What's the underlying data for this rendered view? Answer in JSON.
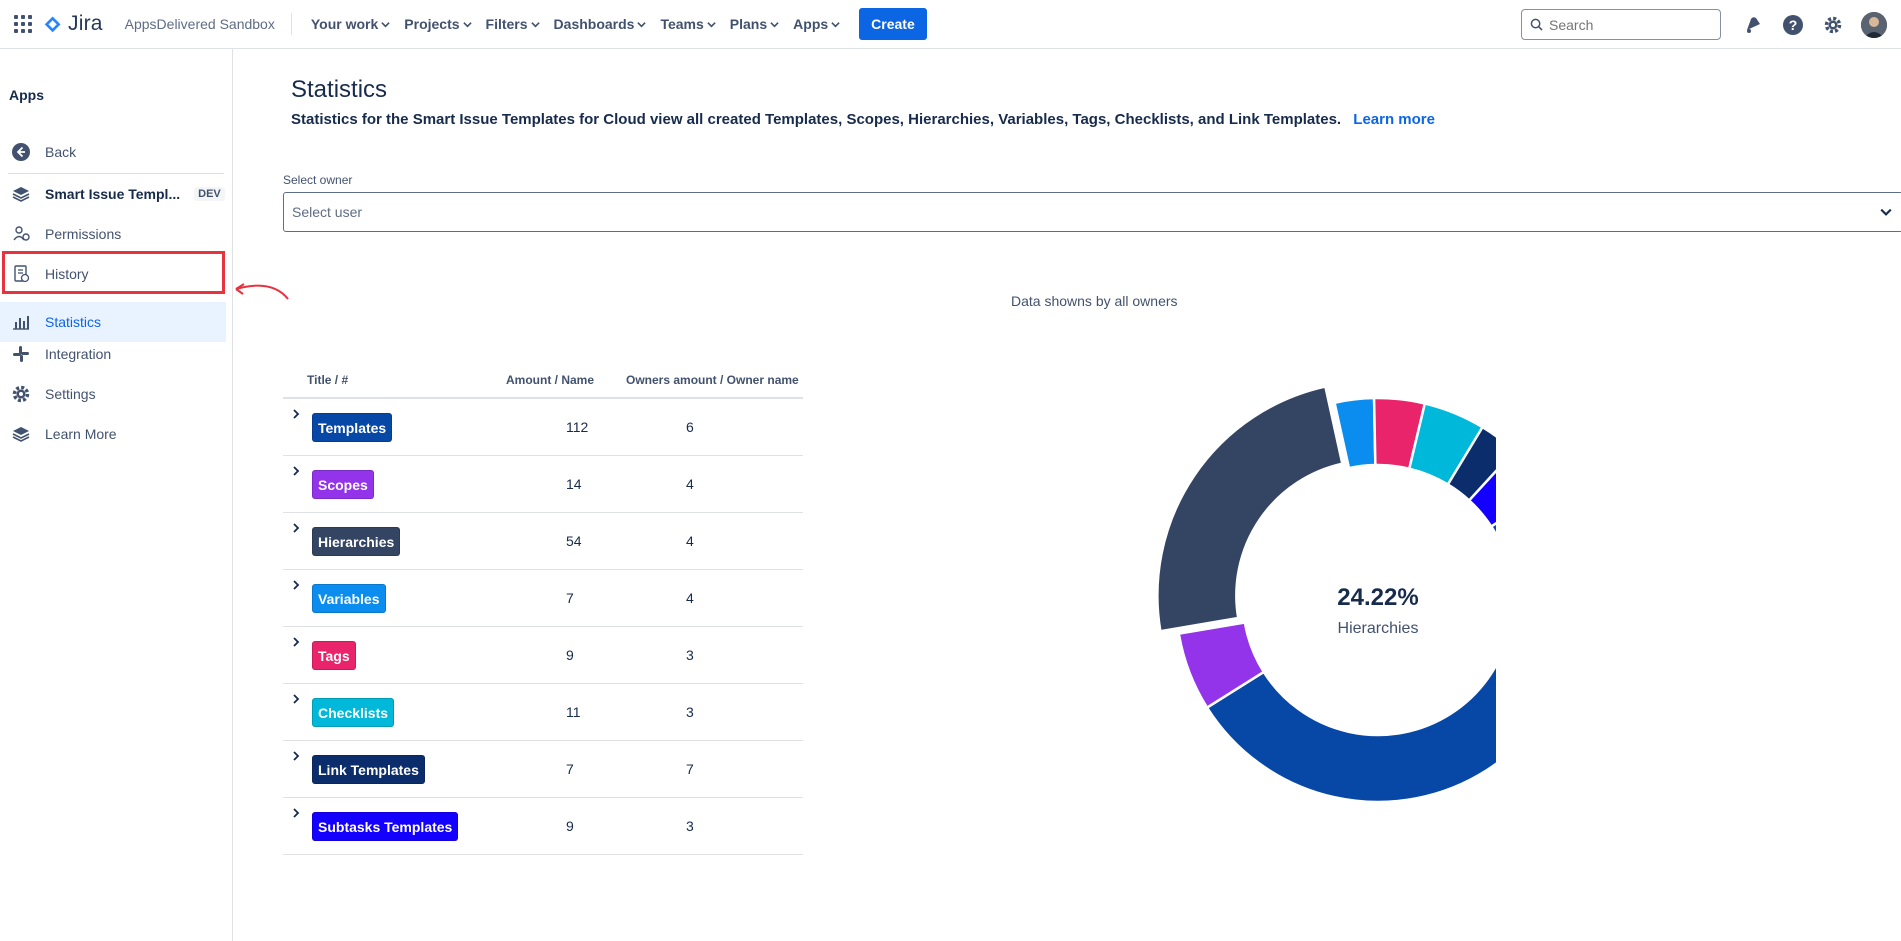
{
  "topbar": {
    "product": "Jira",
    "site": "AppsDelivered Sandbox",
    "nav": [
      "Your work",
      "Projects",
      "Filters",
      "Dashboards",
      "Teams",
      "Plans",
      "Apps"
    ],
    "create_label": "Create",
    "search_placeholder": "Search"
  },
  "sidebar": {
    "heading": "Apps",
    "back_label": "Back",
    "app_name": "Smart Issue Templ...",
    "app_badge": "DEV",
    "items": [
      "Permissions",
      "History",
      "Statistics",
      "Integration",
      "Settings",
      "Learn More"
    ],
    "active_item": "Statistics"
  },
  "main": {
    "title": "Statistics",
    "description": "Statistics for the Smart Issue Templates for Cloud view all created Templates, Scopes, Hierarchies, Variables, Tags, Checklists, and Link Templates.",
    "learn_more": "Learn more",
    "owner_label": "Select owner",
    "owner_placeholder": "Select user",
    "data_shown": "Data showns by all owners",
    "table_headers": [
      "Title / #",
      "Amount / Name",
      "Owners amount / Owner name"
    ],
    "rows": [
      {
        "title": "Templates",
        "amount": "112",
        "owners": "6",
        "color": "#0747a6"
      },
      {
        "title": "Scopes",
        "amount": "14",
        "owners": "4",
        "color": "#9333ea"
      },
      {
        "title": "Hierarchies",
        "amount": "54",
        "owners": "4",
        "color": "#344563"
      },
      {
        "title": "Variables",
        "amount": "7",
        "owners": "4",
        "color": "#0b8df0"
      },
      {
        "title": "Tags",
        "amount": "9",
        "owners": "3",
        "color": "#e9246a"
      },
      {
        "title": "Checklists",
        "amount": "11",
        "owners": "3",
        "color": "#00b8d9"
      },
      {
        "title": "Link Templates",
        "amount": "7",
        "owners": "7",
        "color": "#0c2d6b"
      },
      {
        "title": "Subtasks Templates",
        "amount": "9",
        "owners": "3",
        "color": "#1400ff"
      }
    ],
    "center_percent": "24.22%",
    "center_label": "Hierarchies"
  },
  "chart_data": {
    "type": "pie",
    "categories": [
      "Templates",
      "Scopes",
      "Hierarchies",
      "Variables",
      "Tags",
      "Checklists",
      "Link Templates",
      "Subtasks Templates"
    ],
    "values": [
      112,
      14,
      54,
      7,
      9,
      11,
      7,
      9
    ],
    "colors": [
      "#0747a6",
      "#9333ea",
      "#344563",
      "#0b8df0",
      "#e9246a",
      "#00b8d9",
      "#0c2d6b",
      "#1400ff"
    ],
    "highlighted": "Hierarchies"
  }
}
